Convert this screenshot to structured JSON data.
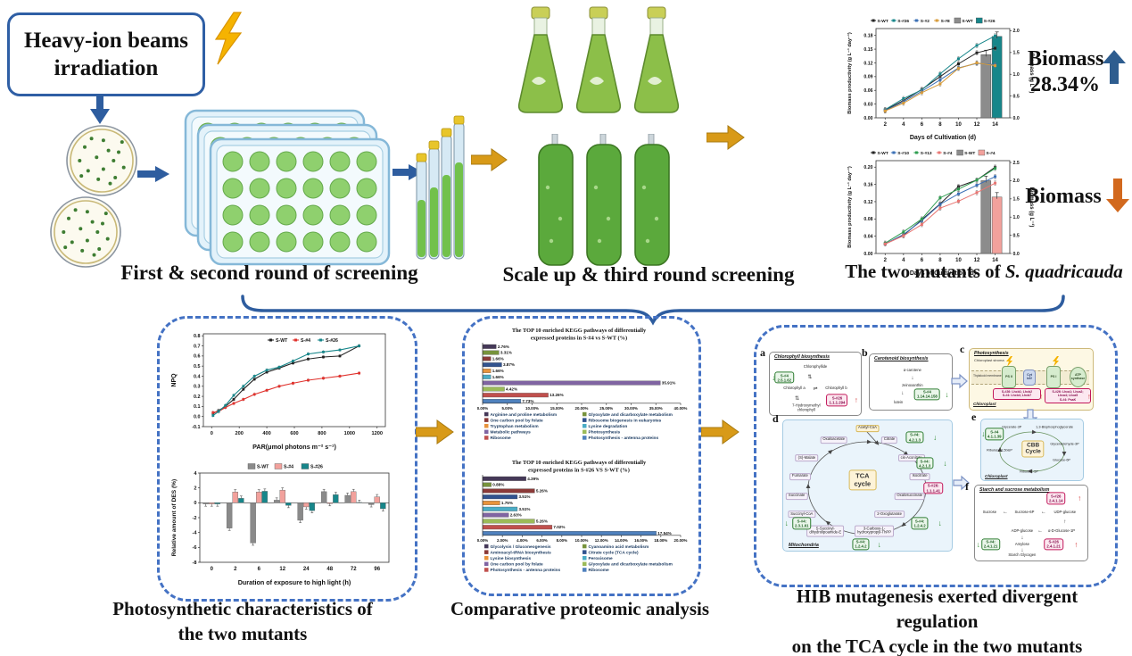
{
  "top": {
    "hib_line1": "Heavy-ion beams",
    "hib_line2": "irradiation",
    "caption_screening1": "First & second round of screening",
    "caption_screening2": "Scale up & third round screening",
    "caption_mutants_prefix": "The two mutants of ",
    "caption_mutants_species": "S. quadricauda",
    "biomass_up_line1": "Biomass",
    "biomass_up_line2": "28.34%",
    "biomass_down": "Biomass"
  },
  "bottom_captions": {
    "photo_line1": "Photosynthetic characteristics of",
    "photo_line2": "the two mutants",
    "proteomic": "Comparative proteomic analysis",
    "tca_line1": "HIB mutagenesis exerted divergent regulation",
    "tca_line2": "on the TCA cycle in the two mutants"
  },
  "chart_data": [
    {
      "name": "biomass-combo-s26",
      "type": "line-bar-combo",
      "xlabel": "Days of Cultivation (d)",
      "ylabel_left": "Biomass productivity (g L⁻¹ day⁻¹)",
      "ylabel_right": "Biomass (g L⁻¹)",
      "x": [
        2,
        4,
        6,
        8,
        10,
        12,
        14
      ],
      "ylim_left": [
        0,
        0.195
      ],
      "ytick_left": 0.03,
      "ydec_left": 2,
      "ylim_right": [
        0,
        2.05
      ],
      "ytick_right": 0.5,
      "ydec_right": 1,
      "series": [
        {
          "name": "S-WT",
          "color": "#222222",
          "values": [
            0.017,
            0.038,
            0.062,
            0.09,
            0.118,
            0.142,
            0.152
          ]
        },
        {
          "name": "S-#26",
          "color": "#17868a",
          "values": [
            0.018,
            0.042,
            0.061,
            0.096,
            0.129,
            0.158,
            0.179
          ]
        },
        {
          "name": "S-#2",
          "color": "#3a6fb5",
          "values": [
            0.016,
            0.035,
            0.058,
            0.083,
            0.109,
            0.119,
            0.116
          ]
        },
        {
          "name": "S-#8",
          "color": "#d79b3a",
          "values": [
            0.015,
            0.032,
            0.055,
            0.074,
            0.108,
            0.12,
            0.114
          ]
        }
      ],
      "bars": [
        {
          "name": "S-WT",
          "color": "#8c8c8c",
          "value": 1.45
        },
        {
          "name": "S-#26",
          "color": "#17868a",
          "value": 1.87
        }
      ]
    },
    {
      "name": "biomass-combo-s4",
      "type": "line-bar-combo",
      "xlabel": "Days of Cultivation (d)",
      "ylabel_left": "Biomass productivity (g L⁻¹ day⁻¹)",
      "ylabel_right": "Biomass (g L⁻¹)",
      "x": [
        2,
        4,
        6,
        8,
        10,
        12,
        14
      ],
      "ylim_left": [
        0,
        0.215
      ],
      "ytick_left": 0.04,
      "ydec_left": 2,
      "ylim_right": [
        0,
        2.55
      ],
      "ytick_right": 0.5,
      "ydec_right": 1,
      "series": [
        {
          "name": "S-WT",
          "color": "#222222",
          "values": [
            0.022,
            0.042,
            0.078,
            0.115,
            0.155,
            0.17,
            0.2
          ]
        },
        {
          "name": "S-#10",
          "color": "#3a6fb5",
          "values": [
            0.022,
            0.044,
            0.076,
            0.114,
            0.138,
            0.158,
            0.178
          ]
        },
        {
          "name": "S-#13",
          "color": "#2e9e4f",
          "values": [
            0.024,
            0.05,
            0.08,
            0.129,
            0.149,
            0.17,
            0.197
          ]
        },
        {
          "name": "S-#4",
          "color": "#e87471",
          "values": [
            0.022,
            0.041,
            0.067,
            0.105,
            0.121,
            0.141,
            0.163
          ]
        }
      ],
      "bars": [
        {
          "name": "S-WT",
          "color": "#8c8c8c",
          "value": 2.0
        },
        {
          "name": "S-#4",
          "color": "#f2a19c",
          "value": 1.55
        }
      ]
    },
    {
      "name": "npq-curve",
      "type": "line",
      "xlabel": "PAR(μmol photons m⁻² s⁻¹)",
      "ylabel": "NPQ",
      "xlim": [
        -60,
        1260
      ],
      "xticks": [
        0,
        200,
        400,
        600,
        800,
        1000,
        1200
      ],
      "ylim": [
        -0.1,
        0.82
      ],
      "ytick": 0.1,
      "ydec": 1,
      "x": [
        10,
        50,
        100,
        160,
        230,
        310,
        400,
        490,
        590,
        700,
        810,
        930,
        1070
      ],
      "series": [
        {
          "name": "S-WT",
          "color": "#222222",
          "values": [
            0.03,
            0.06,
            0.1,
            0.17,
            0.27,
            0.37,
            0.44,
            0.48,
            0.53,
            0.57,
            0.59,
            0.6,
            0.7
          ]
        },
        {
          "name": "S-#4",
          "color": "#e0312c",
          "values": [
            0.04,
            0.05,
            0.09,
            0.13,
            0.17,
            0.22,
            0.26,
            0.3,
            0.33,
            0.36,
            0.38,
            0.4,
            0.43
          ]
        },
        {
          "name": "S-#26",
          "color": "#17868a",
          "values": [
            0.01,
            0.05,
            0.11,
            0.21,
            0.3,
            0.4,
            0.46,
            0.49,
            0.55,
            0.62,
            0.64,
            0.66,
            0.7
          ]
        }
      ]
    },
    {
      "name": "des-bars",
      "type": "grouped-bar",
      "xlabel": "Duration of exposure to high light (h)",
      "ylabel": "Relative amount of DES (%)",
      "categories": [
        "0",
        "2",
        "6",
        "12",
        "24",
        "48",
        "72",
        "96"
      ],
      "ylim": [
        -8,
        4
      ],
      "ytick": 2,
      "series": [
        {
          "name": "S-WT",
          "color": "#8a8a8a",
          "values": [
            -0.15,
            -3.4,
            -5.4,
            0.35,
            -2.35,
            1.5,
            1.0,
            -0.25
          ]
        },
        {
          "name": "S-#4",
          "color": "#f2a19c",
          "values": [
            -0.15,
            1.45,
            1.45,
            1.7,
            -0.55,
            -0.1,
            1.5,
            0.8
          ]
        },
        {
          "name": "S-#26",
          "color": "#17868a",
          "values": [
            -0.15,
            0.6,
            1.55,
            -0.35,
            -1.05,
            1.1,
            0.05,
            -0.8
          ]
        }
      ]
    },
    {
      "name": "kegg-s4",
      "type": "hbar",
      "title_l1": "The TOP 10 enriched KEGG pathways of differentially",
      "title_l2": "expressed proteins in S-#4 vs S-WT (%)",
      "xmax": 40,
      "xtick": 5,
      "items": [
        {
          "label": "Arginine and proline metabolism",
          "value": 2.76,
          "color": "#453858"
        },
        {
          "label": "Glyoxylate and dicarboxylate metabolism",
          "value": 3.31,
          "color": "#77933c"
        },
        {
          "label": "One carbon pool by folate",
          "value": 1.66,
          "color": "#8b3a38"
        },
        {
          "label": "Ribosome biogenesis in eukaryotes",
          "value": 3.87,
          "color": "#31538f"
        },
        {
          "label": "Tryptophan metabolism",
          "value": 1.66,
          "color": "#e8933c"
        },
        {
          "label": "Lysine degradation",
          "value": 1.66,
          "color": "#4bacc6"
        },
        {
          "label": "Metabolic pathways",
          "value": 35.91,
          "color": "#8064a2"
        },
        {
          "label": "Photosynthesis",
          "value": 4.42,
          "color": "#9bbb59"
        },
        {
          "label": "Ribosome",
          "value": 13.26,
          "color": "#c0504d"
        },
        {
          "label": "Photosynthesis - antenna proteins",
          "value": 7.73,
          "color": "#4f81bd"
        }
      ]
    },
    {
      "name": "kegg-s26",
      "type": "hbar",
      "title_l1": "The TOP 10 enriched KEGG pathways of differentially",
      "title_l2": "expressed proteins in S-#26 VS S-WT (%)",
      "xmax": 20,
      "xtick": 2,
      "items": [
        {
          "label": "Glycolysis / Gluconeogenesis",
          "value": 4.39,
          "color": "#453858"
        },
        {
          "label": "Cyanoamino acid metabolism",
          "value": 0.88,
          "color": "#77933c"
        },
        {
          "label": "Aminoacyl-tRNA biosynthesis",
          "value": 5.26,
          "color": "#8b3a38"
        },
        {
          "label": "Citrate cycle (TCA cycle)",
          "value": 3.51,
          "color": "#31538f"
        },
        {
          "label": "Lysine biosynthesis",
          "value": 1.75,
          "color": "#e8933c"
        },
        {
          "label": "Peroxisome",
          "value": 3.51,
          "color": "#4bacc6"
        },
        {
          "label": "One carbon pool by folate",
          "value": 2.63,
          "color": "#8064a2"
        },
        {
          "label": "Glyoxylate and dicarboxylate metabolism",
          "value": 5.26,
          "color": "#9bbb59"
        },
        {
          "label": "Photosynthesis - antenna proteins",
          "value": 7.02,
          "color": "#c0504d"
        },
        {
          "label": "Ribosome",
          "value": 17.54,
          "color": "#4f81bd"
        }
      ]
    }
  ],
  "pathways": {
    "a": {
      "letter": "a",
      "title": "Chlorophyll biosynthesis",
      "n1": "Chlorophyllide",
      "n2": "Chlorophyll a",
      "n3": "Chlorophyll b",
      "n4a": "7-Hydroxymethyl",
      "n4b": "chlorophyll",
      "e1_strain": "S-#4",
      "e1_ec": "2.5.1.62",
      "e2_strain": "S-#26",
      "e2_ec": "1.1.1.294"
    },
    "b": {
      "letter": "b",
      "title": "Carotenoid biosynthesis",
      "n1": "α-carotene",
      "n2": "zeinoxanthin",
      "n3": "lutein",
      "e1_strain": "S-#4",
      "e1_ec": "1.14.14.158"
    },
    "c": {
      "letter": "c",
      "title": "Photosynthesis",
      "stroma": "Chloroplast stroma",
      "membrane": "Thylakoid membrane",
      "region": "Chloroplast",
      "psii": "PS II",
      "cytb6f": "Cyt b6f",
      "psi": "PS I",
      "atp": "ATP synthase",
      "box1_l1": "S-#26: Lhcb1; Lhcb2",
      "box1_l2": "S-#4: Lhcb4; Lhcb7",
      "box2_l1": "S-#26: Lhca1; Lhca2; Lhca4; Lhca5",
      "box2_l2": "S-#4: PsaK"
    },
    "d": {
      "letter": "d",
      "title_l1": "TCA",
      "title_l2": "cycle",
      "region": "Mitochondria",
      "n_acetyl": "Acetyl-CoA",
      "n_oxa": "Oxaloacetate",
      "n_cit": "Citrate",
      "n_cis": "cis-Aconitate",
      "n_iso": "Isocitrate",
      "n_oxs": "Oxalosuccinate",
      "n_2og": "2-Oxoglutarate",
      "n_thpp_1": "3-Carboxy-1-",
      "n_thpp_2": "hydroxypropyl-ThPP",
      "n_sdl_1": "S-Succinyl-",
      "n_sdl_2": "dihydrolipoamide-E",
      "n_succoa": "Succinyl-CoA",
      "n_succ": "Succinate",
      "n_fum": "Fumarate",
      "n_mal": "(S)-Malate",
      "e1_strain": "S-#4:",
      "e1_ec": "4.2.1.3",
      "e2_strain": "S-#4:",
      "e2_ec": "4.2.1.3",
      "e3_strain": "S-#26:",
      "e3_ec": "1.1.1.41",
      "e4_strain": "S-#4:",
      "e4_ec": "1.2.4.2",
      "e5_strain": "S-#4:",
      "e5_ec": "1.2.4.2",
      "e6_strain": "S-#4:",
      "e6_ec": "2.3.1.61"
    },
    "e": {
      "letter": "e",
      "title_l1": "CBB",
      "title_l2": "Cycle",
      "region": "Chloroplast",
      "n1": "Glycerate-3P",
      "n2": "1,3-Bisphosphoglycerate",
      "n3": "Glyceraldehyde-3P",
      "n4": "Glucose-6P",
      "n5": "Ribulose-5P",
      "n6": "Ribulose-1,5bisP",
      "e1_strain": "S-#4",
      "e1_ec": "4.1.1.39"
    },
    "f": {
      "letter": "f",
      "title": "Starch and sucrose metabolism",
      "n1": "Sucrose",
      "n2": "Sucrose-6P",
      "n3": "UDP-glucose",
      "n4": "α-D-Glucose-1P",
      "n5": "ADP-glucose",
      "n6": "Amylose",
      "n7": "Starch Glycogen",
      "e1_strain": "S-#26",
      "e1_ec": "2.4.1.14",
      "e2_strain": "S-#4:",
      "e2_ec": "2.4.1.21",
      "e3_strain": "S-#26",
      "e3_ec": "2.4.1.21"
    }
  }
}
